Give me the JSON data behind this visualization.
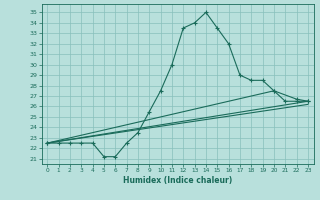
{
  "xlabel": "Humidex (Indice chaleur)",
  "bg_color": "#b8e0dc",
  "grid_color": "#88bfbb",
  "line_color": "#1a6b5a",
  "xlim": [
    -0.5,
    23.5
  ],
  "ylim": [
    20.5,
    35.8
  ],
  "xticks": [
    0,
    1,
    2,
    3,
    4,
    5,
    6,
    7,
    8,
    9,
    10,
    11,
    12,
    13,
    14,
    15,
    16,
    17,
    18,
    19,
    20,
    21,
    22,
    23
  ],
  "yticks": [
    21,
    22,
    23,
    24,
    25,
    26,
    27,
    28,
    29,
    30,
    31,
    32,
    33,
    34,
    35
  ],
  "main_x": [
    0,
    1,
    2,
    3,
    4,
    5,
    6,
    7,
    8,
    9,
    10,
    11,
    12,
    13,
    14,
    15,
    16,
    17,
    18,
    19,
    20,
    21,
    22,
    23
  ],
  "main_y": [
    22.5,
    22.5,
    22.5,
    22.5,
    22.5,
    21.2,
    21.2,
    22.5,
    23.5,
    25.5,
    27.5,
    30.0,
    33.5,
    34.0,
    35.0,
    33.5,
    32.0,
    29.0,
    28.5,
    28.5,
    27.5,
    26.5,
    26.5,
    26.5
  ],
  "line2_x": [
    0,
    23
  ],
  "line2_y": [
    22.5,
    26.5
  ],
  "line3_x": [
    0,
    23
  ],
  "line3_y": [
    22.5,
    26.2
  ],
  "line4_x": [
    0,
    20,
    22,
    23
  ],
  "line4_y": [
    22.5,
    27.5,
    26.7,
    26.5
  ]
}
